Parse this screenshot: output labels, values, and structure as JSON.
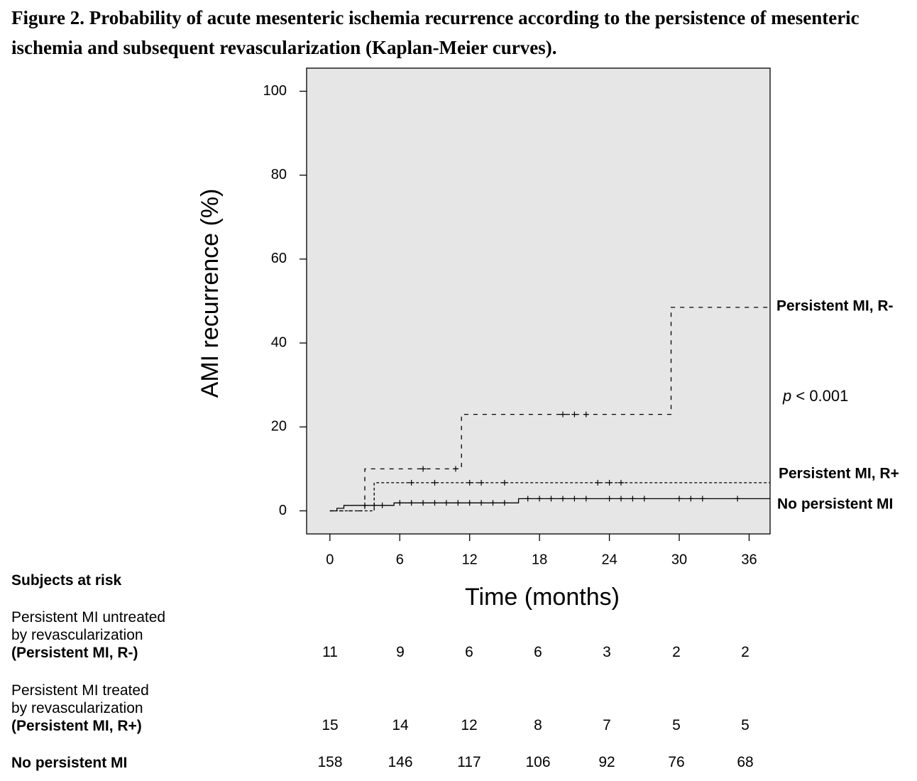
{
  "caption": "Figure 2. Probability of acute mesenteric ischemia recurrence according to the persistence of mesenteric ischemia and subsequent revascularization (Kaplan-Meier curves).",
  "chart_data": {
    "type": "line",
    "subtype": "kaplan-meier step",
    "xlabel": "Time (months)",
    "ylabel": "AMI recurrence  (%)",
    "xticks": [
      0,
      6,
      12,
      18,
      24,
      30,
      36
    ],
    "yticks": [
      0,
      20,
      40,
      60,
      80,
      100
    ],
    "xlim": [
      -2,
      37.8
    ],
    "ylim": [
      -5.5,
      105.5
    ],
    "background": "#e6e6e6",
    "grid": false,
    "annotation": {
      "p_symbol": "p",
      "p_text": " < 0.001"
    },
    "series": [
      {
        "name": "Persistent MI, R-",
        "style": "dashed",
        "steps": [
          [
            0,
            0
          ],
          [
            3,
            0
          ],
          [
            3,
            10
          ],
          [
            11.3,
            10
          ],
          [
            11.3,
            23
          ],
          [
            29.3,
            23
          ],
          [
            29.3,
            48.5
          ],
          [
            37.8,
            48.5
          ]
        ],
        "censored": [
          [
            8,
            10
          ],
          [
            10.8,
            10
          ],
          [
            20,
            23
          ],
          [
            21,
            23
          ],
          [
            22,
            23
          ]
        ]
      },
      {
        "name": "Persistent MI, R+",
        "style": "dashed-fine",
        "steps": [
          [
            0,
            0
          ],
          [
            3.8,
            0
          ],
          [
            3.8,
            6.7
          ],
          [
            37.8,
            6.7
          ]
        ],
        "censored": [
          [
            7,
            6.7
          ],
          [
            9,
            6.7
          ],
          [
            12,
            6.7
          ],
          [
            13,
            6.7
          ],
          [
            15,
            6.7
          ],
          [
            23,
            6.7
          ],
          [
            24,
            6.7
          ],
          [
            25,
            6.7
          ]
        ]
      },
      {
        "name": "No persistent MI",
        "style": "solid",
        "steps": [
          [
            0,
            0
          ],
          [
            0.6,
            0
          ],
          [
            0.6,
            0.6
          ],
          [
            1.2,
            0.6
          ],
          [
            1.2,
            1.3
          ],
          [
            5.5,
            1.3
          ],
          [
            5.5,
            1.9
          ],
          [
            16.2,
            1.9
          ],
          [
            16.2,
            2.9
          ],
          [
            37.8,
            2.9
          ]
        ],
        "censored": [
          [
            3,
            1.3
          ],
          [
            3.8,
            1.3
          ],
          [
            4.5,
            1.3
          ],
          [
            6,
            1.9
          ],
          [
            7,
            1.9
          ],
          [
            8,
            1.9
          ],
          [
            9,
            1.9
          ],
          [
            10,
            1.9
          ],
          [
            11,
            1.9
          ],
          [
            12,
            1.9
          ],
          [
            13,
            1.9
          ],
          [
            14,
            1.9
          ],
          [
            15,
            1.9
          ],
          [
            17,
            2.9
          ],
          [
            18,
            2.9
          ],
          [
            19,
            2.9
          ],
          [
            20,
            2.9
          ],
          [
            21,
            2.9
          ],
          [
            22,
            2.9
          ],
          [
            24,
            2.9
          ],
          [
            25,
            2.9
          ],
          [
            26,
            2.9
          ],
          [
            27,
            2.9
          ],
          [
            30,
            2.9
          ],
          [
            31,
            2.9
          ],
          [
            32,
            2.9
          ],
          [
            35,
            2.9
          ]
        ]
      }
    ]
  },
  "risk_table": {
    "title": "Subjects at risk",
    "rows": [
      {
        "label_lines": [
          "Persistent MI untreated",
          "by revascularization"
        ],
        "label_bold": "(Persistent MI, R-)",
        "values": [
          "11",
          "9",
          "6",
          "6",
          "3",
          "2",
          "2"
        ]
      },
      {
        "label_lines": [
          "Persistent MI treated",
          "by revascularization"
        ],
        "label_bold": "(Persistent MI, R+)",
        "values": [
          "15",
          "14",
          "12",
          "8",
          "7",
          "5",
          "5"
        ]
      },
      {
        "label_lines": [],
        "label_bold": "No persistent MI",
        "values": [
          "158",
          "146",
          "117",
          "106",
          "92",
          "76",
          "68"
        ]
      }
    ]
  }
}
